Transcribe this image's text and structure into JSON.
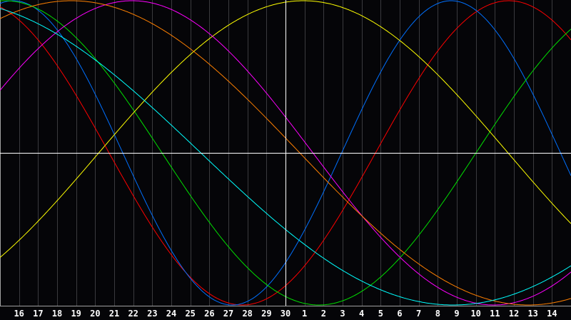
{
  "chart_data": {
    "type": "line",
    "title": "",
    "xlabel": "",
    "ylabel": "",
    "ylim": [
      -1,
      1
    ],
    "grid": true,
    "x_ticks": [
      "16",
      "17",
      "18",
      "19",
      "20",
      "21",
      "22",
      "23",
      "24",
      "25",
      "26",
      "27",
      "28",
      "29",
      "30",
      "1",
      "2",
      "3",
      "4",
      "5",
      "6",
      "7",
      "8",
      "9",
      "10",
      "11",
      "12",
      "13",
      "14"
    ],
    "current_tick": "30",
    "series": [
      {
        "color": "#ff0000",
        "period_days": 28,
        "peak_tick_position": 26.73
      },
      {
        "color": "#0070ff",
        "period_days": 23,
        "peak_tick_position": 23.7
      },
      {
        "color": "#00e000",
        "period_days": 33,
        "peak_tick_position": 0.26
      },
      {
        "color": "#ffff00",
        "period_days": 43,
        "peak_tick_position": 15.94
      },
      {
        "color": "#ff00ff",
        "period_days": 38,
        "peak_tick_position": 6.94
      },
      {
        "color": "#ff8000",
        "period_days": 48,
        "peak_tick_position": 3.75
      },
      {
        "color": "#00ffff",
        "period_days": 53,
        "peak_tick_position": -2.7
      }
    ]
  }
}
